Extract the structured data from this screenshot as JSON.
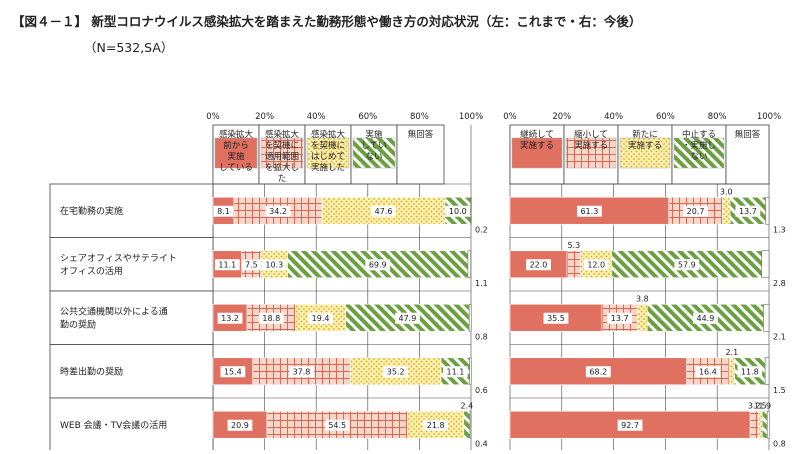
{
  "title": "【図４－１】 新型コロナウイルス感染拡大を踏まえた勤務形態や働き方の対応状況（左：これまで・右：今後）",
  "subtitle": "（N=532,SA）",
  "chart_data": [
    {
      "type": "bar",
      "stacked": true,
      "orientation": "horizontal",
      "xlim": [
        0,
        100
      ],
      "ticks": [
        "0%",
        "20%",
        "40%",
        "60%",
        "80%",
        "100%"
      ],
      "categories": [
        "在宅勤務の実施",
        "シェアオフィスやサテライトオフィスの活用",
        "公共交通機関以外による通勤の奨励",
        "時差出勤の奨励",
        "WEB 会議・TV会議の活用"
      ],
      "category_lines": [
        [
          "在宅勤務の実施"
        ],
        [
          "シェアオフィスやサテライト",
          "オフィスの活用"
        ],
        [
          "公共交通機関以外による通",
          "勤の奨励"
        ],
        [
          "時差出勤の奨励"
        ],
        [
          "WEB 会議・TV会議の活用"
        ]
      ],
      "series": [
        {
          "name": "感染拡大前から実施している",
          "name_lines": [
            "感染拡大",
            "前から",
            "実施",
            "している"
          ],
          "color": "#e07060",
          "pattern": "solid",
          "values": [
            8.1,
            11.1,
            13.2,
            15.4,
            20.9
          ]
        },
        {
          "name": "感染拡大を契機に適用範囲を拡大した",
          "name_lines": [
            "感染拡大",
            "を契機に",
            "適用範囲",
            "を拡大し",
            "た"
          ],
          "color": "#e8a090",
          "pattern": "grid",
          "values": [
            34.2,
            7.5,
            18.8,
            37.8,
            54.5
          ]
        },
        {
          "name": "感染拡大を契機にはじめて実施した",
          "name_lines": [
            "感染拡大",
            "を契機に",
            "はじめて",
            "実施した"
          ],
          "color": "#f2d860",
          "pattern": "dots",
          "values": [
            47.6,
            10.3,
            19.4,
            35.2,
            21.8
          ]
        },
        {
          "name": "実施していない",
          "name_lines": [
            "実施",
            "してい",
            "ない"
          ],
          "color": "#6aa040",
          "pattern": "diag",
          "values": [
            10.0,
            69.9,
            47.9,
            11.1,
            2.4
          ]
        },
        {
          "name": "無回答",
          "name_lines": [
            "無回答"
          ],
          "color": "#ffffff",
          "pattern": "none",
          "values": [
            0.2,
            1.1,
            0.8,
            0.6,
            0.4
          ]
        }
      ]
    },
    {
      "type": "bar",
      "stacked": true,
      "orientation": "horizontal",
      "xlim": [
        0,
        100
      ],
      "ticks": [
        "0%",
        "20%",
        "40%",
        "60%",
        "80%",
        "100%"
      ],
      "categories": [
        "在宅勤務の実施",
        "シェアオフィスやサテライトオフィスの活用",
        "公共交通機関以外による通勤の奨励",
        "時差出勤の奨励",
        "WEB 会議・TV会議の活用"
      ],
      "series": [
        {
          "name": "継続して実施する",
          "name_lines": [
            "継続して",
            "実施する"
          ],
          "color": "#e07060",
          "pattern": "solid",
          "values": [
            61.3,
            22.0,
            35.5,
            68.2,
            92.7
          ]
        },
        {
          "name": "縮小して実施する",
          "name_lines": [
            "縮小して",
            "実施する"
          ],
          "color": "#e8a090",
          "pattern": "grid",
          "values": [
            20.7,
            5.3,
            13.7,
            16.4,
            3.2
          ]
        },
        {
          "name": "新たに実施する",
          "name_lines": [
            "新たに",
            "実施する"
          ],
          "color": "#f2d860",
          "pattern": "dots",
          "values": [
            3.0,
            12.0,
            3.8,
            2.1,
            1.5
          ]
        },
        {
          "name": "中止する・実施しない",
          "name_lines": [
            "中止する",
            "・実施し",
            "ない"
          ],
          "color": "#6aa040",
          "pattern": "diag",
          "values": [
            13.7,
            57.9,
            44.9,
            11.8,
            1.9
          ]
        },
        {
          "name": "無回答",
          "name_lines": [
            "無回答"
          ],
          "color": "#ffffff",
          "pattern": "none",
          "values": [
            1.3,
            2.8,
            2.1,
            1.5,
            0.8
          ]
        }
      ]
    }
  ]
}
